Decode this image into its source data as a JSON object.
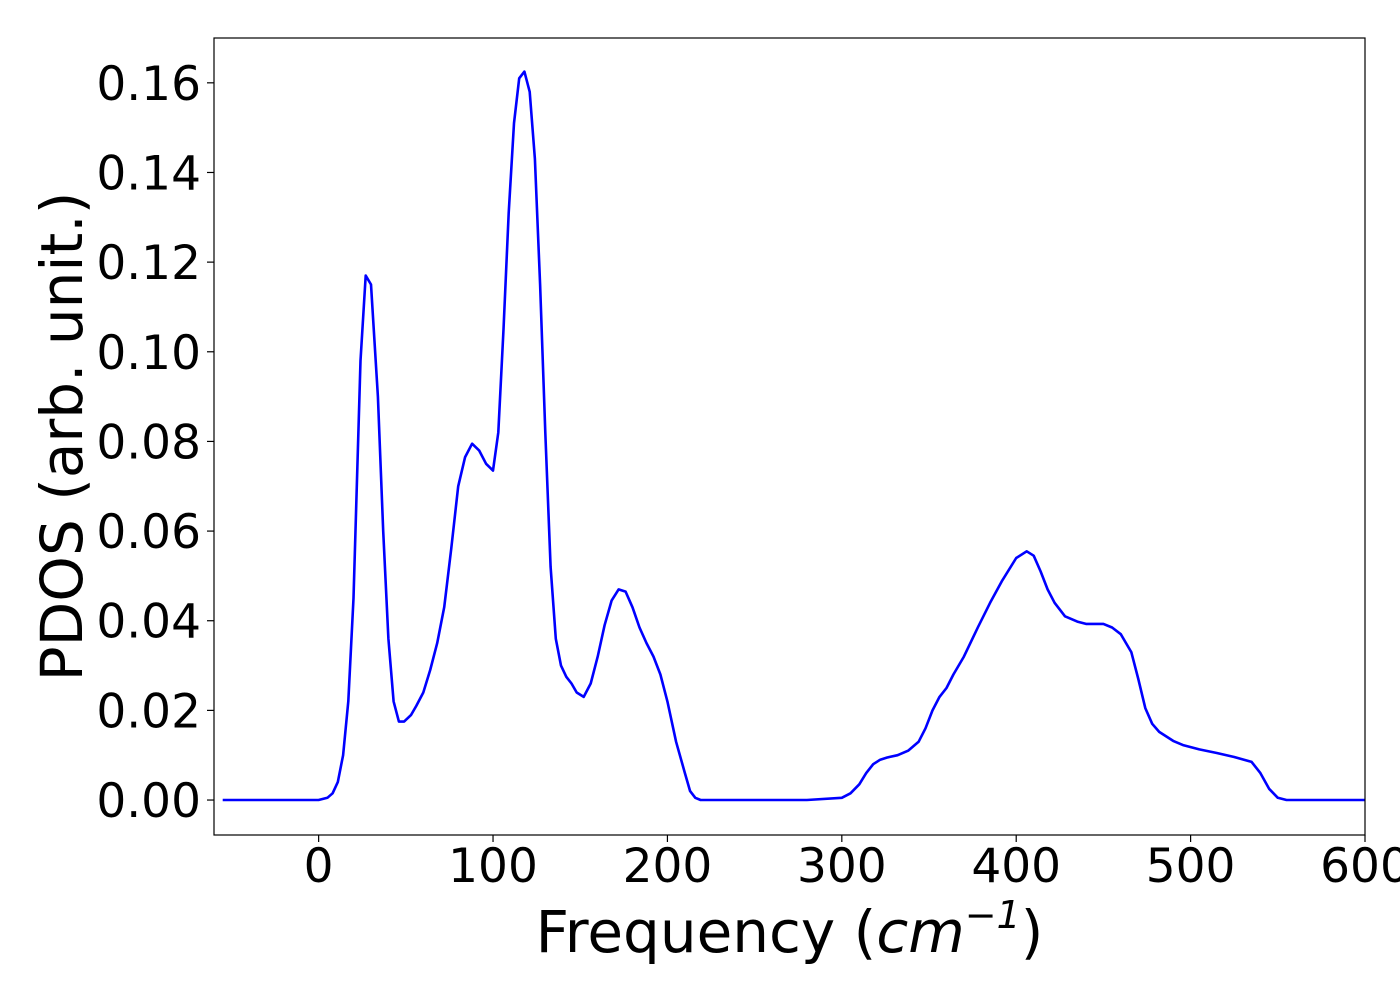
{
  "chart_data": {
    "type": "line",
    "title": "",
    "xlabel": "Frequency (cm⁻¹)",
    "xlabel_parts": {
      "prefix": "Frequency (",
      "unit": "cm",
      "exponent": "−1",
      "suffix": ")"
    },
    "ylabel": "PDOS (arb. unit.)",
    "xlim": [
      -60,
      600
    ],
    "ylim": [
      -0.0078,
      0.17
    ],
    "xticks": [
      0,
      100,
      200,
      300,
      400,
      500,
      600
    ],
    "xtick_labels": [
      "0",
      "100",
      "200",
      "300",
      "400",
      "500",
      "600"
    ],
    "yticks": [
      0.0,
      0.02,
      0.04,
      0.06,
      0.08,
      0.1,
      0.12,
      0.14,
      0.16
    ],
    "ytick_labels": [
      "0.00",
      "0.02",
      "0.04",
      "0.06",
      "0.08",
      "0.10",
      "0.12",
      "0.14",
      "0.16"
    ],
    "grid": false,
    "legend": "none",
    "series": [
      {
        "color": "#0000ff",
        "x": [
          -55,
          -40,
          -20,
          0,
          5,
          8,
          11,
          14,
          17,
          20,
          24,
          27,
          30,
          34,
          37,
          40,
          43,
          46,
          49,
          53,
          56,
          60,
          64,
          68,
          72,
          76,
          80,
          84,
          88,
          92,
          96,
          100,
          103,
          106,
          109,
          112,
          115,
          118,
          121,
          124,
          127,
          130,
          133,
          136,
          139,
          142,
          145,
          148,
          152,
          156,
          160,
          164,
          168,
          172,
          176,
          180,
          184,
          188,
          192,
          196,
          200,
          205,
          210,
          213,
          216,
          219,
          222,
          225,
          230,
          240,
          260,
          280,
          300,
          305,
          310,
          314,
          318,
          322,
          326,
          332,
          338,
          344,
          348,
          352,
          356,
          360,
          364,
          370,
          378,
          385,
          392,
          400,
          406,
          410,
          414,
          418,
          422,
          428,
          435,
          440,
          445,
          450,
          455,
          460,
          466,
          470,
          474,
          478,
          482,
          486,
          490,
          496,
          505,
          515,
          525,
          535,
          540,
          545,
          550,
          555,
          560,
          570,
          600
        ],
        "y": [
          0.0,
          0.0,
          0.0,
          0.0,
          0.0005,
          0.0015,
          0.004,
          0.01,
          0.022,
          0.045,
          0.098,
          0.117,
          0.115,
          0.09,
          0.06,
          0.036,
          0.022,
          0.0175,
          0.0175,
          0.019,
          0.021,
          0.024,
          0.029,
          0.035,
          0.043,
          0.056,
          0.07,
          0.0765,
          0.0795,
          0.078,
          0.075,
          0.0735,
          0.082,
          0.105,
          0.131,
          0.151,
          0.161,
          0.1625,
          0.158,
          0.143,
          0.115,
          0.082,
          0.052,
          0.036,
          0.03,
          0.0275,
          0.026,
          0.024,
          0.023,
          0.026,
          0.032,
          0.039,
          0.0445,
          0.047,
          0.0465,
          0.043,
          0.0385,
          0.035,
          0.032,
          0.028,
          0.022,
          0.013,
          0.006,
          0.002,
          0.0005,
          0.0,
          0.0,
          0.0,
          0.0,
          0.0,
          0.0,
          0.0,
          0.0005,
          0.0015,
          0.0035,
          0.006,
          0.008,
          0.009,
          0.0095,
          0.01,
          0.011,
          0.013,
          0.016,
          0.02,
          0.023,
          0.025,
          0.028,
          0.032,
          0.0385,
          0.044,
          0.049,
          0.054,
          0.0555,
          0.0545,
          0.051,
          0.047,
          0.044,
          0.041,
          0.0398,
          0.0393,
          0.0393,
          0.0393,
          0.0385,
          0.037,
          0.033,
          0.027,
          0.0205,
          0.017,
          0.0152,
          0.0142,
          0.0132,
          0.0122,
          0.0113,
          0.0105,
          0.0096,
          0.0085,
          0.006,
          0.0025,
          0.0005,
          0.0,
          0.0,
          0.0,
          0.0
        ]
      }
    ]
  }
}
